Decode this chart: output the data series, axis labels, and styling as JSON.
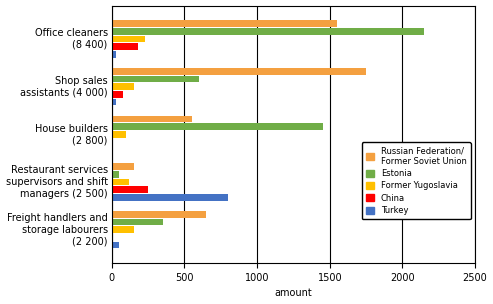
{
  "categories": [
    "Office cleaners\n(8 400)",
    "Shop sales\nassistants (4 000)",
    "House builders\n(2 800)",
    "Restaurant services\nsupervisors and shift\nmanagers (2 500)",
    "Freight handlers and\nstorage labourers\n(2 200)"
  ],
  "series": [
    {
      "name": "Russian Federation/\nFormer Soviet Union",
      "color": "#F4A040",
      "values": [
        1550,
        1750,
        550,
        150,
        650
      ]
    },
    {
      "name": "Estonia",
      "color": "#70AD47",
      "values": [
        2150,
        600,
        1450,
        50,
        350
      ]
    },
    {
      "name": "Former Yugoslavia",
      "color": "#FFC000",
      "values": [
        230,
        150,
        100,
        120,
        150
      ]
    },
    {
      "name": "China",
      "color": "#FF0000",
      "values": [
        180,
        80,
        5,
        250,
        0
      ]
    },
    {
      "name": "Turkey",
      "color": "#4472C4",
      "values": [
        30,
        30,
        10,
        800,
        50
      ]
    }
  ],
  "xlim": [
    0,
    2500
  ],
  "xticks": [
    0,
    500,
    1000,
    1500,
    2000,
    2500
  ],
  "xlabel": "amount",
  "background_color": "#FFFFFF",
  "grid_color": "#000000"
}
